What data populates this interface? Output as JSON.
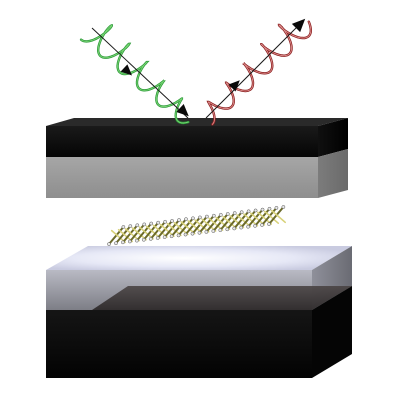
{
  "figure": {
    "incident_beam": {
      "color": "#2e9a3a",
      "highlight": "#7fdc7a",
      "handedness": "circular",
      "direction": "incoming"
    },
    "reflected_beam": {
      "color": "#8a1f1f",
      "highlight": "#e89a9a",
      "handedness": "circular",
      "direction": "outgoing"
    },
    "layers": {
      "top_mirror": [
        "#0d0d0d",
        "#9a9a9a"
      ],
      "bottom_mirror": [
        "#eef0fb",
        "#3a3535",
        "#0d0d0d"
      ]
    },
    "material": {
      "color": "#6b6a2a",
      "accent": "#d8d27a"
    }
  }
}
